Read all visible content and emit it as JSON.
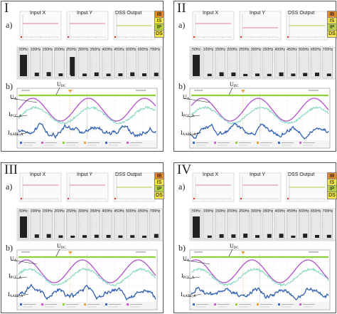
{
  "panels": [
    {
      "numeral": "I",
      "has_subscript": false
    },
    {
      "numeral": "II",
      "has_subscript": false
    },
    {
      "numeral": "III",
      "has_subscript": false
    },
    {
      "numeral": "IV",
      "has_subscript": false
    }
  ],
  "common": {
    "a_label": "a)",
    "b_label": "b)",
    "input_x": "Input X",
    "input_y": "Input Y",
    "dss_output": "DSS Output",
    "state_codes": [
      "IB",
      "IS",
      "IP",
      "DS"
    ],
    "state_colors": [
      "#e3882c",
      "#f3e24a",
      "#b9d245",
      "#f3e24a"
    ],
    "freq_labels": [
      "50Hz",
      "100Hz",
      "150Hz",
      "200Hz",
      "250Hz",
      "300Hz",
      "350Hz",
      "400Hz",
      "450Hz",
      "500Hz",
      "650Hz",
      "700Hz"
    ],
    "ua": "U",
    "ua_sub": "A",
    "udc": "U",
    "udc_sub": "DC",
    "ipcc": "I",
    "ipcc_sub": "PCC_A",
    "iaapf": "I",
    "iaapf_sub": "AAPF_A"
  },
  "colors": {
    "input_x_line": "#e79aa8",
    "input_y_line": "#e79aa8",
    "dss_line": "#b7d86a",
    "udc_line": "#8dd03a",
    "ua_line": "#b24ec9",
    "ipcc_line": "#86d6c4",
    "iaapf_line": "#2f5fb1",
    "cursor": "#f0a030"
  }
}
